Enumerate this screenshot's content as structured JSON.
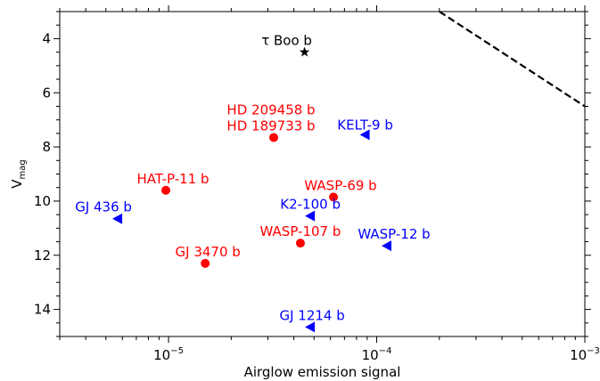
{
  "chart_data": {
    "type": "scatter",
    "title": "",
    "xlabel": "Airglow emission signal",
    "ylabel": "V",
    "ylabel_sub": "mag",
    "xscale": "log",
    "xlim": [
      3e-06,
      0.001
    ],
    "ylim": [
      15,
      3
    ],
    "y_inverted": true,
    "grid": false,
    "x_ticks": [
      {
        "value": 1e-05,
        "base": "10",
        "exp": "−5"
      },
      {
        "value": 0.0001,
        "base": "10",
        "exp": "−4"
      },
      {
        "value": 0.001,
        "base": "10",
        "exp": "−3"
      }
    ],
    "y_ticks": [
      4,
      6,
      8,
      10,
      12,
      14
    ],
    "colors": {
      "red": "#ff0000",
      "blue": "#0000ff",
      "black": "#000000"
    },
    "points": [
      {
        "label": "τ Boo b",
        "x": 4.5e-05,
        "y": 4.5,
        "marker": "star",
        "color": "#000000"
      },
      {
        "label": "HD 209458 b",
        "label2": "HD 189733 b",
        "x": 3.2e-05,
        "y": 7.65,
        "marker": "circle",
        "color": "#ff0000"
      },
      {
        "label": "KELT-9 b",
        "x": 8.8e-05,
        "y": 7.55,
        "marker": "triangle-left",
        "color": "#0000ff"
      },
      {
        "label": "HAT-P-11 b",
        "x": 9.7e-06,
        "y": 9.6,
        "marker": "circle",
        "color": "#ff0000"
      },
      {
        "label": "WASP-69 b",
        "x": 6.2e-05,
        "y": 9.85,
        "marker": "circle",
        "color": "#ff0000"
      },
      {
        "label": "GJ 436 b",
        "x": 5.7e-06,
        "y": 10.65,
        "marker": "triangle-left",
        "color": "#0000ff"
      },
      {
        "label": "K2-100 b",
        "x": 4.8e-05,
        "y": 10.55,
        "marker": "triangle-left",
        "color": "#0000ff"
      },
      {
        "label": "WASP-107 b",
        "x": 4.3e-05,
        "y": 11.55,
        "marker": "circle",
        "color": "#ff0000"
      },
      {
        "label": "WASP-12 b",
        "x": 0.000112,
        "y": 11.65,
        "marker": "triangle-left",
        "color": "#0000ff"
      },
      {
        "label": "GJ 3470 b",
        "x": 1.5e-05,
        "y": 12.3,
        "marker": "circle",
        "color": "#ff0000"
      },
      {
        "label": "GJ 1214 b",
        "x": 4.8e-05,
        "y": 14.65,
        "marker": "triangle-left",
        "color": "#0000ff"
      }
    ],
    "reference_line": {
      "style": "dashed",
      "color": "#000000",
      "x": [
        0.0002,
        0.001
      ],
      "y": [
        3,
        6.5
      ]
    }
  }
}
